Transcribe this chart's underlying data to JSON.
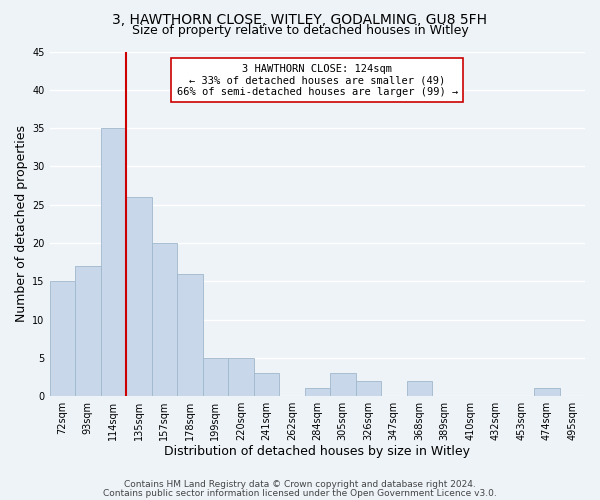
{
  "title_line1": "3, HAWTHORN CLOSE, WITLEY, GODALMING, GU8 5FH",
  "title_line2": "Size of property relative to detached houses in Witley",
  "xlabel": "Distribution of detached houses by size in Witley",
  "ylabel": "Number of detached properties",
  "bin_labels": [
    "72sqm",
    "93sqm",
    "114sqm",
    "135sqm",
    "157sqm",
    "178sqm",
    "199sqm",
    "220sqm",
    "241sqm",
    "262sqm",
    "284sqm",
    "305sqm",
    "326sqm",
    "347sqm",
    "368sqm",
    "389sqm",
    "410sqm",
    "432sqm",
    "453sqm",
    "474sqm",
    "495sqm"
  ],
  "bin_values": [
    15,
    17,
    35,
    26,
    20,
    16,
    5,
    5,
    3,
    0,
    1,
    3,
    2,
    0,
    2,
    0,
    0,
    0,
    0,
    1,
    0
  ],
  "bar_color": "#c8d8ea",
  "bar_edgecolor": "#a0b8cc",
  "vline_color": "#cc0000",
  "vline_x_index": 2,
  "annotation_text": "3 HAWTHORN CLOSE: 124sqm\n← 33% of detached houses are smaller (49)\n66% of semi-detached houses are larger (99) →",
  "annotation_box_edgecolor": "#cc0000",
  "annotation_box_facecolor": "#ffffff",
  "ylim": [
    0,
    45
  ],
  "yticks": [
    0,
    5,
    10,
    15,
    20,
    25,
    30,
    35,
    40,
    45
  ],
  "footer_line1": "Contains HM Land Registry data © Crown copyright and database right 2024.",
  "footer_line2": "Contains public sector information licensed under the Open Government Licence v3.0.",
  "background_color": "#eef3f8",
  "grid_color": "#ffffff",
  "title_fontsize": 10,
  "subtitle_fontsize": 9,
  "axis_label_fontsize": 9,
  "tick_fontsize": 7,
  "annotation_fontsize": 7.5,
  "footer_fontsize": 6.5
}
